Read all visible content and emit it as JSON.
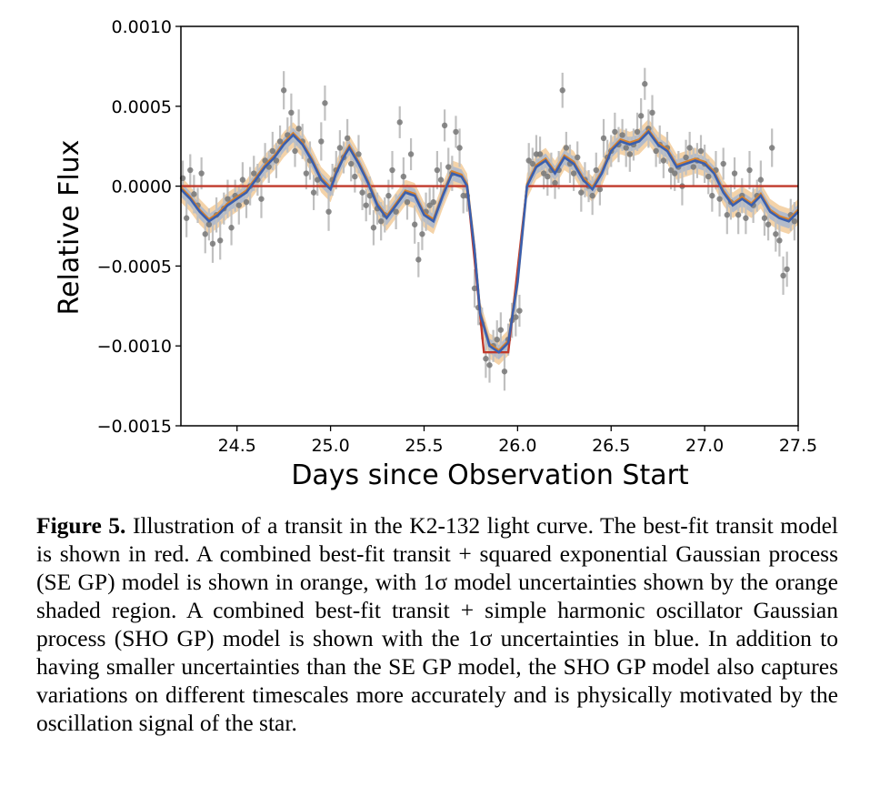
{
  "chart_data": {
    "type": "scatter",
    "xlabel": "Days since Observation Start",
    "ylabel": "Relative Flux",
    "xlim": [
      24.2,
      27.5
    ],
    "ylim": [
      -0.0015,
      0.001
    ],
    "x_ticks": [
      24.5,
      25.0,
      25.5,
      26.0,
      26.5,
      27.0,
      27.5
    ],
    "x_tick_labels": [
      "24.5",
      "25.0",
      "25.5",
      "26.0",
      "26.5",
      "27.0",
      "27.5"
    ],
    "y_ticks": [
      0.001,
      0.0005,
      0.0,
      -0.0005,
      -0.001,
      -0.0015
    ],
    "y_tick_labels": [
      "0.0010",
      "0.0005",
      "0.0000",
      "−0.0005",
      "−0.0010",
      "−0.0015"
    ],
    "grid": false,
    "colors": {
      "points": "#777777",
      "errorbars": "#c0c0c0",
      "transit_model": "#c0392b",
      "se_gp": "#d9822b",
      "se_gp_band": "#f0c48c",
      "sho_gp": "#3a5fae",
      "sho_gp_band": "#9db3d6"
    },
    "transit": {
      "ingress_start": 25.73,
      "ingress_end": 25.82,
      "egress_start": 25.95,
      "egress_end": 26.05,
      "depth": -0.00104
    },
    "gp_model": [
      [
        24.2,
        -2e-05
      ],
      [
        24.25,
        -8e-05
      ],
      [
        24.3,
        -0.00016
      ],
      [
        24.35,
        -0.00022
      ],
      [
        24.4,
        -0.00018
      ],
      [
        24.45,
        -0.00012
      ],
      [
        24.5,
        -8e-05
      ],
      [
        24.55,
        -4e-05
      ],
      [
        24.6,
        4e-05
      ],
      [
        24.65,
        0.00012
      ],
      [
        24.7,
        0.00018
      ],
      [
        24.75,
        0.00026
      ],
      [
        24.8,
        0.00032
      ],
      [
        24.85,
        0.00026
      ],
      [
        24.9,
        0.00016
      ],
      [
        24.95,
        4e-05
      ],
      [
        25.0,
        -2e-05
      ],
      [
        25.03,
        8e-05
      ],
      [
        25.07,
        0.00018
      ],
      [
        25.1,
        0.00024
      ],
      [
        25.15,
        0.00014
      ],
      [
        25.2,
        2e-05
      ],
      [
        25.25,
        -0.00012
      ],
      [
        25.3,
        -0.0002
      ],
      [
        25.35,
        -0.00012
      ],
      [
        25.4,
        -4e-05
      ],
      [
        25.45,
        -6e-05
      ],
      [
        25.5,
        -0.00018
      ],
      [
        25.55,
        -0.00022
      ],
      [
        25.6,
        -6e-05
      ],
      [
        25.65,
        8e-05
      ],
      [
        25.7,
        6e-05
      ],
      [
        25.73,
        0.0
      ],
      [
        25.77,
        -0.0004
      ],
      [
        25.8,
        -0.0008
      ],
      [
        25.85,
        -0.001
      ],
      [
        25.9,
        -0.00104
      ],
      [
        25.95,
        -0.00098
      ],
      [
        26.0,
        -0.0006
      ],
      [
        26.05,
        0.0
      ],
      [
        26.1,
        0.00012
      ],
      [
        26.15,
        0.00016
      ],
      [
        26.2,
        8e-05
      ],
      [
        26.25,
        0.00018
      ],
      [
        26.3,
        0.00014
      ],
      [
        26.35,
        4e-05
      ],
      [
        26.4,
        -2e-05
      ],
      [
        26.45,
        8e-05
      ],
      [
        26.5,
        0.00022
      ],
      [
        26.55,
        0.00028
      ],
      [
        26.6,
        0.00026
      ],
      [
        26.65,
        0.00028
      ],
      [
        26.7,
        0.00034
      ],
      [
        26.75,
        0.00026
      ],
      [
        26.8,
        0.00022
      ],
      [
        26.85,
        0.00012
      ],
      [
        26.9,
        0.00014
      ],
      [
        26.95,
        0.00016
      ],
      [
        27.0,
        0.00014
      ],
      [
        27.05,
        8e-05
      ],
      [
        27.1,
        -4e-05
      ],
      [
        27.15,
        -0.00012
      ],
      [
        27.2,
        -8e-05
      ],
      [
        27.25,
        -0.00012
      ],
      [
        27.3,
        -6e-05
      ],
      [
        27.35,
        -0.00016
      ],
      [
        27.4,
        -0.0002
      ],
      [
        27.45,
        -0.00022
      ],
      [
        27.5,
        -0.00016
      ]
    ],
    "points": [
      [
        24.21,
        5e-05,
        0.00011
      ],
      [
        24.23,
        -0.0002,
        0.00012
      ],
      [
        24.25,
        0.0001,
        0.0001
      ],
      [
        24.27,
        -5e-05,
        0.00012
      ],
      [
        24.29,
        -0.00012,
        0.00011
      ],
      [
        24.31,
        8e-05,
        0.0001
      ],
      [
        24.33,
        -0.0003,
        0.00012
      ],
      [
        24.35,
        -0.00024,
        0.0001
      ],
      [
        24.37,
        -0.00036,
        0.00012
      ],
      [
        24.39,
        -0.00018,
        0.00011
      ],
      [
        24.41,
        -0.00034,
        0.00012
      ],
      [
        24.43,
        -0.00014,
        0.0001
      ],
      [
        24.45,
        -8e-05,
        0.00012
      ],
      [
        24.47,
        -0.00026,
        0.00011
      ],
      [
        24.49,
        -6e-05,
        0.0001
      ],
      [
        24.51,
        -0.00012,
        0.00012
      ],
      [
        24.53,
        4e-05,
        0.00011
      ],
      [
        24.55,
        -0.0001,
        0.0001
      ],
      [
        24.57,
        0.0,
        0.00012
      ],
      [
        24.59,
        8e-05,
        0.00011
      ],
      [
        24.61,
        4e-05,
        0.0001
      ],
      [
        24.63,
        -8e-05,
        0.00012
      ],
      [
        24.65,
        0.00016,
        0.00011
      ],
      [
        24.67,
        0.00012,
        0.0001
      ],
      [
        24.69,
        0.00022,
        0.00012
      ],
      [
        24.71,
        0.00016,
        0.00011
      ],
      [
        24.73,
        0.00028,
        0.0001
      ],
      [
        24.75,
        0.0006,
        0.00012
      ],
      [
        24.77,
        0.00032,
        0.00011
      ],
      [
        24.79,
        0.00046,
        0.00012
      ],
      [
        24.81,
        0.00022,
        0.0001
      ],
      [
        24.83,
        0.00036,
        0.00012
      ],
      [
        24.85,
        0.00028,
        0.00011
      ],
      [
        24.87,
        8e-05,
        0.0001
      ],
      [
        24.89,
        0.00016,
        0.00012
      ],
      [
        24.91,
        -4e-05,
        0.00011
      ],
      [
        24.93,
        4e-05,
        0.0001
      ],
      [
        24.95,
        0.00028,
        0.00012
      ],
      [
        24.97,
        0.00052,
        0.00011
      ],
      [
        24.99,
        -0.00016,
        0.00012
      ],
      [
        25.01,
        4e-05,
        0.0001
      ],
      [
        25.03,
        0.0001,
        0.00012
      ],
      [
        25.05,
        0.00024,
        0.00011
      ],
      [
        25.07,
        0.00018,
        0.0001
      ],
      [
        25.09,
        0.0003,
        0.00012
      ],
      [
        25.11,
        0.00014,
        0.00011
      ],
      [
        25.13,
        6e-05,
        0.0001
      ],
      [
        25.15,
        0.0002,
        0.00012
      ],
      [
        25.17,
        -4e-05,
        0.00011
      ],
      [
        25.19,
        -0.00012,
        0.0001
      ],
      [
        25.21,
        -6e-05,
        0.00012
      ],
      [
        25.23,
        -0.00026,
        0.00011
      ],
      [
        25.25,
        -0.00014,
        0.0001
      ],
      [
        25.27,
        -0.00022,
        0.00012
      ],
      [
        25.29,
        -0.00018,
        0.00011
      ],
      [
        25.31,
        -6e-05,
        0.0001
      ],
      [
        25.33,
        0.0001,
        0.00012
      ],
      [
        25.35,
        -0.00016,
        0.00011
      ],
      [
        25.37,
        0.0004,
        0.0001
      ],
      [
        25.39,
        6e-05,
        0.00012
      ],
      [
        25.41,
        -0.0001,
        0.00011
      ],
      [
        25.43,
        0.0002,
        0.0001
      ],
      [
        25.45,
        -0.00024,
        0.00012
      ],
      [
        25.47,
        -0.00046,
        0.00011
      ],
      [
        25.49,
        -0.0003,
        0.0001
      ],
      [
        25.51,
        -0.00016,
        0.00012
      ],
      [
        25.53,
        -0.00012,
        0.00011
      ],
      [
        25.55,
        -0.0001,
        0.0001
      ],
      [
        25.57,
        0.0001,
        0.00012
      ],
      [
        25.59,
        4e-05,
        0.00011
      ],
      [
        25.61,
        0.00038,
        0.0001
      ],
      [
        25.63,
        0.00012,
        0.00012
      ],
      [
        25.65,
        8e-05,
        0.00011
      ],
      [
        25.67,
        0.00034,
        0.0001
      ],
      [
        25.69,
        0.00024,
        0.00012
      ],
      [
        25.71,
        -6e-05,
        0.00011
      ],
      [
        25.73,
        -6e-05,
        0.0001
      ],
      [
        25.77,
        -0.00064,
        0.00012
      ],
      [
        25.79,
        -0.00076,
        0.00011
      ],
      [
        25.81,
        -0.00086,
        0.0001
      ],
      [
        25.83,
        -0.00108,
        0.00012
      ],
      [
        25.85,
        -0.00112,
        0.00011
      ],
      [
        25.87,
        -0.001,
        0.0001
      ],
      [
        25.89,
        -0.00096,
        0.00012
      ],
      [
        25.91,
        -0.0009,
        0.00011
      ],
      [
        25.93,
        -0.00116,
        0.00012
      ],
      [
        25.95,
        -0.00096,
        0.0001
      ],
      [
        25.97,
        -0.00084,
        0.00011
      ],
      [
        25.99,
        -0.00082,
        0.00012
      ],
      [
        26.01,
        -0.00078,
        0.0001
      ],
      [
        26.06,
        0.00016,
        0.00011
      ],
      [
        26.08,
        0.00014,
        0.0001
      ],
      [
        26.1,
        0.0002,
        0.00012
      ],
      [
        26.12,
        0.0002,
        0.00011
      ],
      [
        26.14,
        8e-05,
        0.0001
      ],
      [
        26.16,
        6e-05,
        0.00012
      ],
      [
        26.18,
        0.0001,
        0.00011
      ],
      [
        26.2,
        2e-05,
        0.0001
      ],
      [
        26.22,
        0.0001,
        0.00012
      ],
      [
        26.24,
        0.0006,
        0.00011
      ],
      [
        26.26,
        0.00024,
        0.0001
      ],
      [
        26.28,
        0.00014,
        0.00012
      ],
      [
        26.3,
        8e-05,
        0.00011
      ],
      [
        26.32,
        0.00018,
        0.0001
      ],
      [
        26.34,
        -4e-05,
        0.00012
      ],
      [
        26.36,
        4e-05,
        0.00011
      ],
      [
        26.38,
        0.0,
        0.0001
      ],
      [
        26.4,
        -6e-05,
        0.00012
      ],
      [
        26.42,
        0.0001,
        0.00011
      ],
      [
        26.44,
        -2e-05,
        0.0001
      ],
      [
        26.46,
        0.0003,
        0.00012
      ],
      [
        26.48,
        0.00018,
        0.00011
      ],
      [
        26.5,
        0.00022,
        0.0001
      ],
      [
        26.52,
        0.00034,
        0.00012
      ],
      [
        26.54,
        0.00026,
        0.00011
      ],
      [
        26.56,
        0.00032,
        0.0001
      ],
      [
        26.58,
        0.00024,
        0.00012
      ],
      [
        26.6,
        0.0002,
        0.00011
      ],
      [
        26.62,
        0.00026,
        0.0001
      ],
      [
        26.64,
        0.00034,
        0.00012
      ],
      [
        26.66,
        0.00044,
        0.00011
      ],
      [
        26.68,
        0.00064,
        0.0001
      ],
      [
        26.7,
        0.00036,
        0.00012
      ],
      [
        26.72,
        0.00046,
        0.00011
      ],
      [
        26.74,
        0.00022,
        0.0001
      ],
      [
        26.76,
        0.00026,
        0.00012
      ],
      [
        26.78,
        0.00016,
        0.00011
      ],
      [
        26.8,
        0.00024,
        0.0001
      ],
      [
        26.82,
        0.0001,
        0.00012
      ],
      [
        26.84,
        8e-05,
        0.00011
      ],
      [
        26.86,
        0.00012,
        0.0001
      ],
      [
        26.88,
        0.0,
        0.00012
      ],
      [
        26.9,
        0.00018,
        0.00011
      ],
      [
        26.92,
        0.00024,
        0.0001
      ],
      [
        26.94,
        0.00012,
        0.00012
      ],
      [
        26.96,
        0.00016,
        0.00011
      ],
      [
        26.98,
        0.00022,
        0.0001
      ],
      [
        27.0,
        0.00014,
        0.00012
      ],
      [
        27.02,
        6e-05,
        0.00011
      ],
      [
        27.04,
        -6e-05,
        0.0001
      ],
      [
        27.06,
        0.0001,
        0.00012
      ],
      [
        27.08,
        -8e-05,
        0.00011
      ],
      [
        27.1,
        0.00014,
        0.0001
      ],
      [
        27.12,
        -0.00018,
        0.00012
      ],
      [
        27.14,
        -0.0001,
        0.00011
      ],
      [
        27.16,
        8e-05,
        0.0001
      ],
      [
        27.18,
        -0.00018,
        0.00012
      ],
      [
        27.2,
        -6e-05,
        0.00011
      ],
      [
        27.22,
        -0.0002,
        0.0001
      ],
      [
        27.24,
        0.0001,
        0.00012
      ],
      [
        27.26,
        -0.00012,
        0.00011
      ],
      [
        27.28,
        -6e-05,
        0.0001
      ],
      [
        27.3,
        4e-05,
        0.00012
      ],
      [
        27.32,
        -0.0002,
        0.00011
      ],
      [
        27.34,
        -0.00024,
        0.0001
      ],
      [
        27.36,
        0.00024,
        0.00012
      ],
      [
        27.38,
        -0.0003,
        0.00011
      ],
      [
        27.4,
        -0.00034,
        0.0001
      ],
      [
        27.42,
        -0.00056,
        0.00012
      ],
      [
        27.44,
        -0.00052,
        0.00011
      ],
      [
        27.46,
        -0.00018,
        0.0001
      ],
      [
        27.48,
        -0.00022,
        0.00012
      ]
    ]
  },
  "caption": {
    "label": "Figure 5.",
    "text": " Illustration of a transit in the K2-132 light curve. The best-fit transit model is shown in red. A combined best-fit transit + squared exponential Gaussian process (SE GP) model is shown in orange, with 1σ model uncertainties shown by the orange shaded region. A combined best-fit transit + simple harmonic oscillator Gaussian process (SHO GP) model is shown with the 1σ uncertainties in blue. In addition to having smaller uncertainties than the SE GP model, the SHO GP model also captures variations on different timescales more accurately and is physically motivated by the oscillation signal of the star."
  }
}
